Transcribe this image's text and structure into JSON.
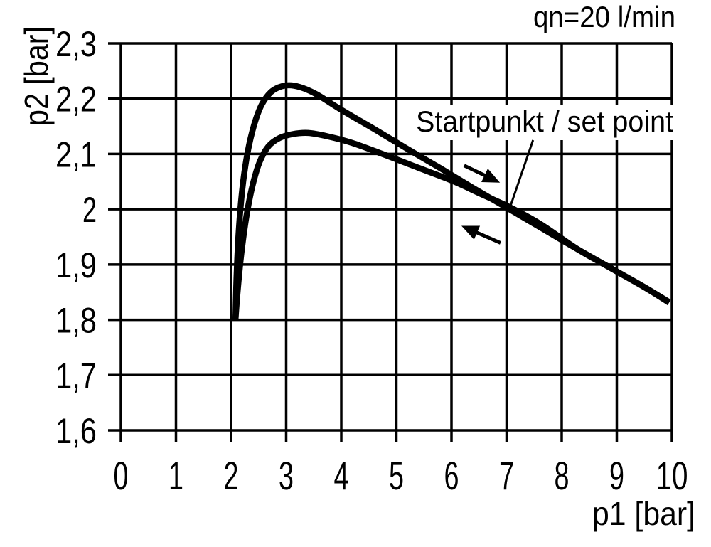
{
  "chart_data": {
    "type": "line",
    "title": "qn=20 l/min",
    "xlabel": "p1 [bar]",
    "ylabel": "p2 [bar]",
    "xlim": [
      0,
      10
    ],
    "ylim": [
      1.6,
      2.3
    ],
    "grid": true,
    "x_ticks": [
      0,
      1,
      2,
      3,
      4,
      5,
      6,
      7,
      8,
      9,
      10
    ],
    "x_tick_labels": [
      "0",
      "1",
      "2",
      "3",
      "4",
      "5",
      "6",
      "7",
      "8",
      "9",
      "10"
    ],
    "y_ticks": [
      2.3,
      2.2,
      2.1,
      2.0,
      1.9,
      1.8,
      1.7,
      1.6
    ],
    "y_tick_labels": [
      "2,3",
      "2,2",
      "2,1",
      "2",
      "1,9",
      "1,8",
      "1,7",
      "1,6"
    ],
    "series": [
      {
        "name": "upper-hysteresis-branch",
        "points": [
          [
            2.08,
            1.801
          ],
          [
            2.1,
            1.88
          ],
          [
            2.14,
            1.962
          ],
          [
            2.21,
            2.042
          ],
          [
            2.3,
            2.103
          ],
          [
            2.42,
            2.153
          ],
          [
            2.56,
            2.19
          ],
          [
            2.75,
            2.214
          ],
          [
            3.0,
            2.224
          ],
          [
            3.25,
            2.221
          ],
          [
            3.55,
            2.208
          ],
          [
            4.0,
            2.18
          ],
          [
            4.6,
            2.145
          ],
          [
            5.2,
            2.109
          ],
          [
            5.8,
            2.074
          ],
          [
            6.4,
            2.038
          ],
          [
            7.05,
            2.0
          ],
          [
            7.7,
            1.962
          ],
          [
            8.3,
            1.927
          ],
          [
            8.9,
            1.893
          ],
          [
            9.5,
            1.859
          ],
          [
            9.95,
            1.831
          ]
        ]
      },
      {
        "name": "lower-hysteresis-branch",
        "points": [
          [
            2.08,
            1.801
          ],
          [
            2.12,
            1.853
          ],
          [
            2.19,
            1.923
          ],
          [
            2.28,
            1.988
          ],
          [
            2.39,
            2.043
          ],
          [
            2.52,
            2.086
          ],
          [
            2.68,
            2.114
          ],
          [
            2.88,
            2.129
          ],
          [
            3.12,
            2.136
          ],
          [
            3.4,
            2.138
          ],
          [
            3.75,
            2.132
          ],
          [
            4.2,
            2.12
          ],
          [
            4.8,
            2.098
          ],
          [
            5.4,
            2.075
          ],
          [
            6.0,
            2.052
          ],
          [
            6.55,
            2.027
          ],
          [
            7.05,
            2.004
          ],
          [
            7.6,
            1.974
          ],
          [
            8.3,
            1.927
          ],
          [
            8.9,
            1.893
          ],
          [
            9.5,
            1.859
          ],
          [
            9.95,
            1.832
          ]
        ]
      }
    ],
    "annotations": {
      "set_point_label": "Startpunkt / set point",
      "set_point": [
        7.0,
        2.0
      ],
      "leader": {
        "from": [
          7.48,
          2.125
        ],
        "to": [
          7.06,
          2.003
        ]
      },
      "arrows": [
        {
          "name": "direction-increasing-arrow",
          "from": [
            6.23,
            2.079
          ],
          "to": [
            6.88,
            2.048
          ]
        },
        {
          "name": "direction-decreasing-arrow",
          "from": [
            6.89,
            1.939
          ],
          "to": [
            6.18,
            1.97
          ]
        }
      ]
    },
    "colors": {
      "ink": "#000000",
      "background": "#ffffff"
    }
  }
}
